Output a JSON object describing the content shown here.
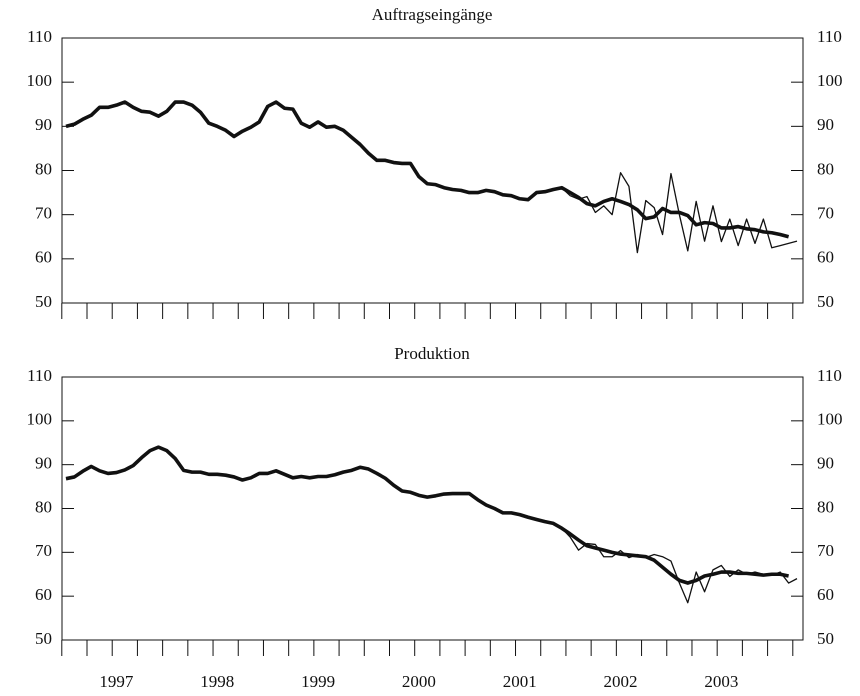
{
  "chart_data": [
    {
      "type": "line",
      "title": "Auftragseingänge",
      "ylim": [
        50,
        110
      ],
      "yticks": [
        50,
        60,
        70,
        80,
        90,
        100,
        110
      ],
      "series": [
        {
          "color": "#111111",
          "width": 1.3,
          "values": [
            90,
            90.5,
            91.6,
            92.5,
            94.3,
            94.3,
            94.8,
            95.5,
            94.3,
            93.4,
            93.2,
            92.3,
            93.4,
            95.5,
            95.5,
            94.8,
            93.2,
            90.7,
            90,
            89.1,
            87.7,
            88.9,
            89.8,
            91,
            94.5,
            95.5,
            94.1,
            93.9,
            90.7,
            89.8,
            91,
            89.8,
            90,
            89.1,
            87.5,
            85.9,
            83.9,
            82.3,
            82.3,
            81.8,
            81.6,
            81.6,
            78.6,
            77,
            76.8,
            76.1,
            75.7,
            75.5,
            75,
            75,
            75.5,
            75.2,
            74.5,
            74.3,
            73.6,
            73.4,
            75,
            75.2,
            75.7,
            76.1,
            74.3,
            73.5,
            74.1,
            70.5,
            72,
            70,
            79.5,
            76.4,
            61.4,
            73.2,
            71.6,
            65.5,
            79.3,
            70,
            61.8,
            73,
            64,
            72,
            63.9,
            69,
            63,
            69,
            63.5,
            69,
            62.5,
            63,
            63.5,
            64
          ]
        },
        {
          "color": "#111111",
          "width": 3.6,
          "values": [
            90,
            90.5,
            91.6,
            92.5,
            94.3,
            94.3,
            94.8,
            95.5,
            94.3,
            93.4,
            93.2,
            92.3,
            93.4,
            95.5,
            95.5,
            94.8,
            93.2,
            90.7,
            90,
            89.1,
            87.7,
            88.9,
            89.8,
            91,
            94.5,
            95.5,
            94.1,
            93.9,
            90.7,
            89.8,
            91,
            89.8,
            90,
            89.1,
            87.5,
            85.9,
            83.9,
            82.3,
            82.3,
            81.8,
            81.6,
            81.6,
            78.6,
            77,
            76.8,
            76.1,
            75.7,
            75.5,
            75,
            75,
            75.5,
            75.2,
            74.5,
            74.3,
            73.6,
            73.4,
            75,
            75.2,
            75.7,
            76.1,
            75,
            73.9,
            72.5,
            72,
            73,
            73.6,
            73,
            72.3,
            71.1,
            69.1,
            69.5,
            71.4,
            70.5,
            70.5,
            69.8,
            67.7,
            68.2,
            68,
            67,
            67,
            67.3,
            66.8,
            66.6,
            66.1,
            65.9,
            65.5,
            65,
            null
          ]
        }
      ]
    },
    {
      "type": "line",
      "title": "Produktion",
      "ylim": [
        50,
        110
      ],
      "yticks": [
        50,
        60,
        70,
        80,
        90,
        100,
        110
      ],
      "categories": [
        null,
        null,
        null,
        null,
        null,
        null,
        "1997",
        null,
        null,
        null,
        null,
        null,
        null,
        null,
        null,
        null,
        null,
        null,
        "1998",
        null,
        null,
        null,
        null,
        null,
        null,
        null,
        null,
        null,
        null,
        null,
        "1999",
        null,
        null,
        null,
        null,
        null,
        null,
        null,
        null,
        null,
        null,
        null,
        "2000",
        null,
        null,
        null,
        null,
        null,
        null,
        null,
        null,
        null,
        null,
        null,
        "2001",
        null,
        null,
        null,
        null,
        null,
        null,
        null,
        null,
        null,
        null,
        null,
        "2002",
        null,
        null,
        null,
        null,
        null,
        null,
        null,
        null,
        null,
        null,
        null,
        "2003",
        null,
        null,
        null,
        null,
        null,
        null,
        null,
        null,
        null
      ],
      "series": [
        {
          "color": "#111111",
          "width": 1.3,
          "values": [
            86.8,
            87.2,
            88.5,
            89.6,
            88.6,
            88,
            88.2,
            88.8,
            89.8,
            91.6,
            93.2,
            94,
            93.2,
            91.4,
            88.7,
            88.3,
            88.3,
            87.8,
            87.8,
            87.6,
            87.2,
            86.5,
            87,
            88,
            88,
            88.6,
            87.8,
            87,
            87.3,
            87,
            87.3,
            87.3,
            87.7,
            88.3,
            88.7,
            89.4,
            89,
            88,
            86.9,
            85.3,
            84,
            83.7,
            83,
            82.6,
            82.9,
            83.3,
            83.4,
            83.4,
            83.4,
            82,
            80.8,
            80,
            79,
            79,
            78.6,
            78,
            77.5,
            77,
            76.6,
            75.5,
            73.5,
            70.5,
            72,
            71.8,
            69,
            69,
            70.4,
            68.8,
            69.5,
            68.8,
            69.5,
            69,
            68,
            63,
            58.5,
            65.5,
            61,
            66,
            67,
            64.5,
            66,
            65,
            65.5,
            65,
            64.8,
            65.5,
            63,
            64
          ]
        },
        {
          "color": "#111111",
          "width": 3.6,
          "values": [
            86.8,
            87.2,
            88.5,
            89.6,
            88.6,
            88,
            88.2,
            88.8,
            89.8,
            91.6,
            93.2,
            94,
            93.2,
            91.4,
            88.7,
            88.3,
            88.3,
            87.8,
            87.8,
            87.6,
            87.2,
            86.5,
            87,
            88,
            88,
            88.6,
            87.8,
            87,
            87.3,
            87,
            87.3,
            87.3,
            87.7,
            88.3,
            88.7,
            89.4,
            89,
            88,
            86.9,
            85.3,
            84,
            83.7,
            83,
            82.6,
            82.9,
            83.3,
            83.4,
            83.4,
            83.4,
            82,
            80.8,
            80,
            79,
            79,
            78.6,
            78,
            77.5,
            77,
            76.6,
            75.5,
            74.2,
            72.8,
            71.5,
            71,
            70.5,
            70,
            69.6,
            69.4,
            69.2,
            69,
            68.2,
            66.6,
            65,
            63.6,
            63,
            63.6,
            64.6,
            65,
            65.5,
            65.5,
            65.2,
            65.2,
            65,
            64.8,
            65,
            65,
            64.6,
            null
          ]
        }
      ]
    }
  ]
}
